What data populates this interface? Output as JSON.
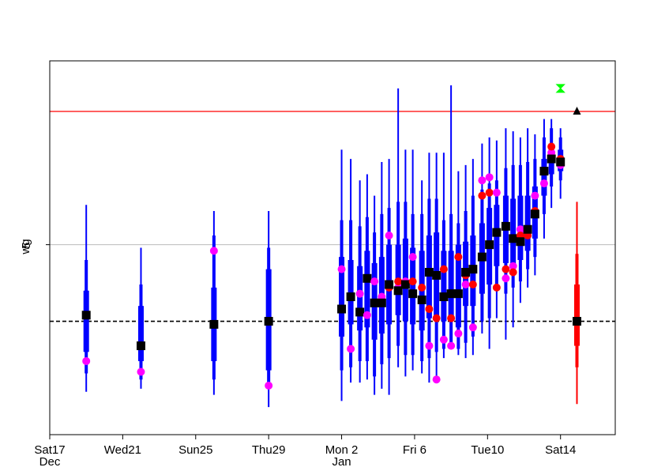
{
  "chart_data": {
    "type": "box",
    "ylabel": "wg",
    "y_tick_labels": [
      {
        "value": 5,
        "text": "5"
      }
    ],
    "x_tick_labels": [
      {
        "day": 0,
        "line1": "Sat17",
        "line2": "Dec",
        "color": "#000000"
      },
      {
        "day": 4,
        "line1": "Wed21",
        "line2": "",
        "color": "#000000"
      },
      {
        "day": 8,
        "line1": "Sun25",
        "line2": "",
        "color": "#ff0000"
      },
      {
        "day": 12,
        "line1": "Thu29",
        "line2": "",
        "color": "#000000"
      },
      {
        "day": 16,
        "line1": "Mon 2",
        "line2": "Jan",
        "color": "#000000"
      },
      {
        "day": 20,
        "line1": "Fri 6",
        "line2": "",
        "color": "#000000"
      },
      {
        "day": 24,
        "line1": "Tue10",
        "line2": "",
        "color": "#000000"
      },
      {
        "day": 28,
        "line1": "Sat14",
        "line2": "",
        "color": "#000000"
      }
    ],
    "xlim": [
      0,
      31
    ],
    "ylim": [
      -1.2,
      11.0
    ],
    "reference_lines": {
      "red_horizontal": 9.35,
      "black_dashed": 2.5,
      "grey_gridline": 5
    },
    "colors": {
      "box": "#0000ff",
      "median": "#000000",
      "magenta_points": "#ff00ff",
      "red_points": "#ff0000",
      "ref_red": "#ff0000",
      "ref_dashed": "#000000",
      "last_box": "#ff0000",
      "green_marker": "#00ff00",
      "triangle": "#000000"
    },
    "boxes": [
      {
        "x": 2.0,
        "min": 0.2,
        "q1": 1.5,
        "q3": 3.5,
        "max": 6.3,
        "w1": 0.8,
        "w3": 4.5,
        "median": 2.7,
        "magenta": 1.2
      },
      {
        "x": 5.0,
        "min": 0.3,
        "q1": 1.2,
        "q3": 3.0,
        "max": 4.9,
        "w1": 0.6,
        "w3": 3.7,
        "median": 1.7,
        "magenta": 0.85
      },
      {
        "x": 9.0,
        "min": 0.1,
        "q1": 1.2,
        "q3": 3.6,
        "max": 6.1,
        "w1": 0.6,
        "w3": 5.3,
        "median": 2.4,
        "magenta": 4.8
      },
      {
        "x": 12.0,
        "min": -0.3,
        "q1": 0.9,
        "q3": 4.2,
        "max": 6.1,
        "w1": 0.3,
        "w3": 4.9,
        "median": 2.5,
        "magenta": 0.4
      },
      {
        "x": 16.0,
        "min": -0.1,
        "q1": 2.0,
        "q3": 4.6,
        "max": 8.1,
        "w1": 0.9,
        "w3": 5.8,
        "median": 2.9,
        "magenta": 4.2
      },
      {
        "x": 16.5,
        "min": 0.5,
        "q1": 2.4,
        "q3": 4.5,
        "max": 7.8,
        "w1": 1.0,
        "w3": 5.8,
        "median": 3.3,
        "magenta": 1.6
      },
      {
        "x": 17.0,
        "min": 0.5,
        "q1": 2.2,
        "q3": 4.3,
        "max": 7.1,
        "w1": 1.2,
        "w3": 5.6,
        "median": 2.8,
        "magenta": 3.4
      },
      {
        "x": 17.4,
        "min": 0.6,
        "q1": 2.3,
        "q3": 4.8,
        "max": 7.3,
        "w1": 1.2,
        "w3": 5.9,
        "median": 3.9,
        "magenta": 2.7
      },
      {
        "x": 17.8,
        "min": 0.1,
        "q1": 1.9,
        "q3": 4.4,
        "max": 6.6,
        "w1": 0.7,
        "w3": 5.4,
        "median": 3.1,
        "magenta": 3.8
      },
      {
        "x": 18.2,
        "min": 0.3,
        "q1": 2.1,
        "q3": 4.6,
        "max": 7.7,
        "w1": 1.1,
        "w3": 6.0,
        "median": 3.1,
        "magenta": 3.3
      },
      {
        "x": 18.6,
        "min": 0.1,
        "q1": 2.4,
        "q3": 5.0,
        "max": 7.8,
        "w1": 1.3,
        "w3": 6.2,
        "median": 3.7,
        "magenta": 5.3,
        "red": 3.6
      },
      {
        "x": 19.1,
        "min": 1.0,
        "q1": 2.7,
        "q3": 5.0,
        "max": 10.1,
        "w1": 1.7,
        "w3": 6.4,
        "median": 3.5,
        "magenta": 3.6,
        "red": 3.8
      },
      {
        "x": 19.5,
        "min": 0.7,
        "q1": 2.5,
        "q3": 5.2,
        "max": 8.1,
        "w1": 1.4,
        "w3": 6.4,
        "median": 3.7,
        "magenta": 3.8
      },
      {
        "x": 19.9,
        "min": 0.9,
        "q1": 2.4,
        "q3": 4.9,
        "max": 8.1,
        "w1": 1.4,
        "w3": 6.0,
        "median": 3.4,
        "magenta": 4.6,
        "red": 3.8
      },
      {
        "x": 20.4,
        "min": 0.8,
        "q1": 2.2,
        "q3": 4.8,
        "max": 7.1,
        "w1": 1.2,
        "w3": 6.0,
        "median": 3.2,
        "magenta": 3.2,
        "red": 3.6
      },
      {
        "x": 20.8,
        "min": 0.5,
        "q1": 2.6,
        "q3": 5.3,
        "max": 8.0,
        "w1": 1.3,
        "w3": 6.5,
        "median": 4.1,
        "magenta": 1.7,
        "red": 2.9
      },
      {
        "x": 21.2,
        "min": 0.6,
        "q1": 2.6,
        "q3": 5.4,
        "max": 8.0,
        "w1": 1.5,
        "w3": 6.5,
        "median": 4.0,
        "magenta": 0.6,
        "red": 2.6
      },
      {
        "x": 21.6,
        "min": 1.3,
        "q1": 2.5,
        "q3": 4.8,
        "max": 8.0,
        "w1": 1.6,
        "w3": 5.8,
        "median": 3.3,
        "magenta": 1.9,
        "red": 4.2
      },
      {
        "x": 22.0,
        "min": 1.8,
        "q1": 2.5,
        "q3": 4.8,
        "max": 10.2,
        "w1": 1.7,
        "w3": 6.0,
        "median": 3.4,
        "magenta": 1.7,
        "red": 2.6
      },
      {
        "x": 22.4,
        "min": 1.4,
        "q1": 2.3,
        "q3": 5.0,
        "max": 7.4,
        "w1": 1.6,
        "w3": 5.7,
        "median": 3.4,
        "magenta": 2.1,
        "red": 4.6
      },
      {
        "x": 22.8,
        "min": 1.3,
        "q1": 3.0,
        "q3": 5.1,
        "max": 7.6,
        "w1": 1.8,
        "w3": 6.1,
        "median": 4.1,
        "magenta": 3.7,
        "red": 4.0
      },
      {
        "x": 23.2,
        "min": 1.4,
        "q1": 3.0,
        "q3": 5.3,
        "max": 7.8,
        "w1": 2.0,
        "w3": 6.6,
        "median": 4.2,
        "magenta": 2.3,
        "red": 3.7
      },
      {
        "x": 23.7,
        "min": 2.1,
        "q1": 3.4,
        "q3": 5.7,
        "max": 8.3,
        "w1": 2.5,
        "w3": 6.8,
        "median": 4.6,
        "magenta": 7.1,
        "red": 6.6
      },
      {
        "x": 24.1,
        "min": 1.6,
        "q1": 3.7,
        "q3": 6.2,
        "max": 8.5,
        "w1": 2.6,
        "w3": 7.0,
        "median": 5.0,
        "magenta": 7.2,
        "red": 6.7
      },
      {
        "x": 24.5,
        "min": 2.6,
        "q1": 4.3,
        "q3": 6.3,
        "max": 8.4,
        "w1": 3.5,
        "w3": 7.1,
        "median": 5.4,
        "magenta": 6.7,
        "red": 3.6
      },
      {
        "x": 25.0,
        "min": 1.9,
        "q1": 4.4,
        "q3": 6.6,
        "max": 8.8,
        "w1": 3.4,
        "w3": 7.5,
        "median": 5.6,
        "magenta": 3.9,
        "red": 4.2
      },
      {
        "x": 25.4,
        "min": 2.3,
        "q1": 4.3,
        "q3": 6.5,
        "max": 8.7,
        "w1": 3.6,
        "w3": 7.6,
        "median": 5.2,
        "magenta": 4.3,
        "red": 4.1
      },
      {
        "x": 25.8,
        "min": 3.1,
        "q1": 4.5,
        "q3": 6.6,
        "max": 8.5,
        "w1": 3.8,
        "w3": 7.6,
        "median": 5.1,
        "magenta": 5.5,
        "red": 5.3
      },
      {
        "x": 26.2,
        "min": 3.6,
        "q1": 4.8,
        "q3": 6.6,
        "max": 8.8,
        "w1": 4.2,
        "w3": 7.7,
        "median": 5.5,
        "magenta": 5.4,
        "red": 5.3
      },
      {
        "x": 26.6,
        "min": 4.0,
        "q1": 5.2,
        "q3": 6.9,
        "max": 8.6,
        "w1": 4.6,
        "w3": 7.8,
        "median": 6.0,
        "magenta": 6.6,
        "red": 6.1
      },
      {
        "x": 27.1,
        "min": 5.2,
        "q1": 6.6,
        "q3": 7.8,
        "max": 9.1,
        "w1": 6.0,
        "w3": 8.5,
        "median": 7.4,
        "magenta": 7.0,
        "red": 7.4
      },
      {
        "x": 27.5,
        "min": 6.2,
        "q1": 7.3,
        "q3": 8.3,
        "max": 9.1,
        "w1": 6.9,
        "w3": 8.8,
        "median": 7.8,
        "magenta": 8.0,
        "red": 8.2
      },
      {
        "x": 28.0,
        "min": 6.5,
        "q1": 7.4,
        "q3": 8.1,
        "max": 8.8,
        "w1": 7.1,
        "w3": 8.5,
        "median": 7.7,
        "magenta": 7.6,
        "red": 7.8,
        "green": 7.7
      }
    ],
    "final_box": {
      "x": 28.9,
      "min": -0.2,
      "q1": 1.7,
      "q3": 3.7,
      "max": 6.4,
      "w1": 1.0,
      "w3": 4.7,
      "median": 2.5
    },
    "green_marker": {
      "x": 28.0,
      "y": 10.1
    },
    "triangle": {
      "x": 28.9,
      "y": 9.35
    }
  }
}
